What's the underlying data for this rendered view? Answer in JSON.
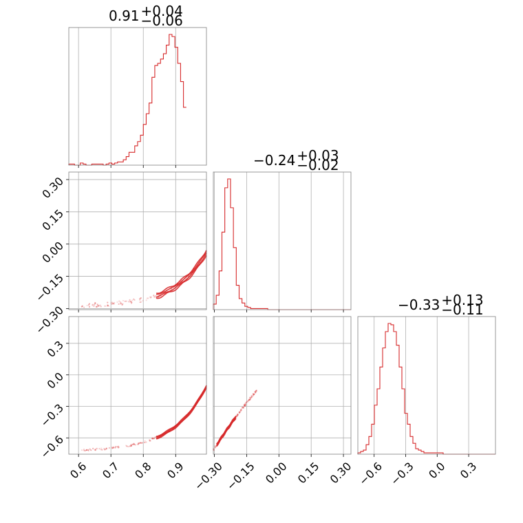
{
  "chart_data": {
    "type": "corner",
    "titles": [
      {
        "value": "0.91",
        "plus": "+0.04",
        "minus": "−0.06"
      },
      {
        "value": "−0.24",
        "plus": "+0.03",
        "minus": "−0.02"
      },
      {
        "value": "−0.33",
        "plus": "+0.13",
        "minus": "−0.11"
      }
    ],
    "params": [
      {
        "range": [
          0.57,
          0.995
        ],
        "ticks": [
          0.6,
          0.7,
          0.8,
          0.9
        ],
        "tick_labels": [
          "0.6",
          "0.7",
          "0.8",
          "0.9"
        ]
      },
      {
        "range": [
          -0.305,
          0.335
        ],
        "ticks": [
          -0.3,
          -0.15,
          0.0,
          0.15,
          0.3
        ],
        "tick_labels": [
          "−0.30",
          "−0.15",
          "0.00",
          "0.15",
          "0.30"
        ]
      },
      {
        "range": [
          -0.755,
          0.555
        ],
        "ticks": [
          -0.6,
          -0.3,
          0.0,
          0.3
        ],
        "tick_labels": [
          "−0.6",
          "−0.3",
          "0.0",
          "0.3"
        ]
      }
    ],
    "histograms": [
      {
        "edges_start": 0.57,
        "bin_width": 0.00885,
        "counts": [
          1,
          1,
          0,
          0,
          2,
          1,
          0,
          0,
          1,
          1,
          1,
          1,
          0,
          1,
          2,
          1,
          2,
          3,
          3,
          5,
          8,
          12,
          12,
          18,
          22,
          28,
          38,
          48,
          58,
          82,
          93,
          95,
          99,
          104,
          112,
          122,
          120,
          110,
          95,
          78,
          54
        ]
      },
      {
        "edges_start": -0.305,
        "bin_width": 0.01333,
        "counts": [
          5,
          13,
          35,
          70,
          110,
          118,
          92,
          56,
          22,
          10,
          6,
          3,
          2,
          1,
          1,
          1,
          1,
          1,
          1,
          0,
          0,
          0,
          0,
          0,
          0,
          0,
          0,
          0,
          0,
          0,
          0,
          0,
          0,
          0,
          0,
          0,
          0,
          0,
          0,
          0,
          0,
          0,
          0,
          0,
          0,
          0,
          0,
          0
        ]
      },
      {
        "edges_start": -0.755,
        "bin_width": 0.0262,
        "counts": [
          1,
          2,
          3,
          7,
          13,
          22,
          36,
          48,
          64,
          78,
          90,
          96,
          95,
          90,
          80,
          64,
          48,
          30,
          22,
          13,
          8,
          4,
          3,
          2,
          1,
          1,
          1,
          1,
          1,
          1,
          1,
          0,
          0,
          0,
          0,
          0,
          0,
          0,
          0,
          0,
          0,
          0,
          0,
          0,
          0,
          0,
          0,
          0,
          0,
          0
        ]
      }
    ],
    "pairs": [
      {
        "x_param": 0,
        "y_param": 1
      },
      {
        "x_param": 0,
        "y_param": 2
      },
      {
        "x_param": 1,
        "y_param": 2
      }
    ],
    "color": "#d62728",
    "grid": true
  }
}
